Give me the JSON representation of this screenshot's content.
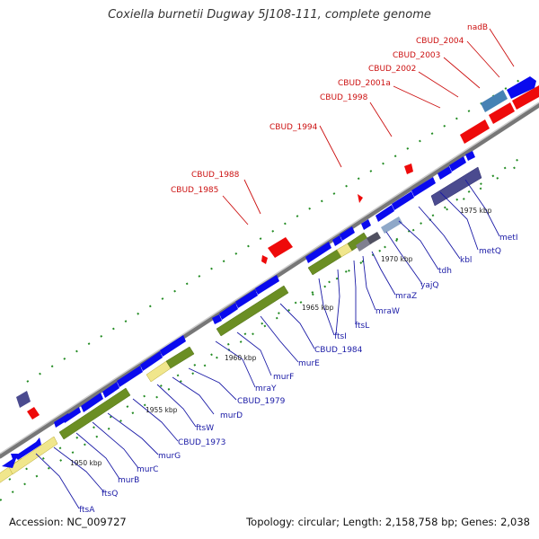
{
  "title": "Coxiella burnetii Dugway 5J108-111, complete genome",
  "footer": {
    "accession": "Accession: NC_009727",
    "stats": "Topology: circular; Length: 2,158,758 bp; Genes: 2,038"
  },
  "colors": {
    "forward_gene": "#0a0aee",
    "reverse_gene": "#ee0a0a",
    "cds_green": "#6b8e23",
    "cds_pale": "#f0e68c",
    "label_blue": "#1a1aa6",
    "label_red": "#cc1111"
  },
  "scale_ticks": [
    "1950 kbp",
    "1955 kbp",
    "1960 kbp",
    "1965 kbp",
    "1970 kbp",
    "1975 kbp"
  ],
  "labels_bottom": [
    "ftsA",
    "ftsQ",
    "murB",
    "murC",
    "murG",
    "CBUD_1973",
    "ftsW",
    "murD",
    "CBUD_1979",
    "mraY",
    "murF",
    "murE",
    "CBUD_1984",
    "ftsI",
    "ftsL",
    "mraW",
    "mraZ",
    "yajQ",
    "tdh",
    "kbl",
    "metQ",
    "metI"
  ],
  "labels_top": [
    "CBUD_1985",
    "CBUD_1988",
    "CBUD_1994",
    "CBUD_1998",
    "CBUD_2001a",
    "CBUD_2002",
    "CBUD_2003",
    "CBUD_2004",
    "nadB"
  ]
}
